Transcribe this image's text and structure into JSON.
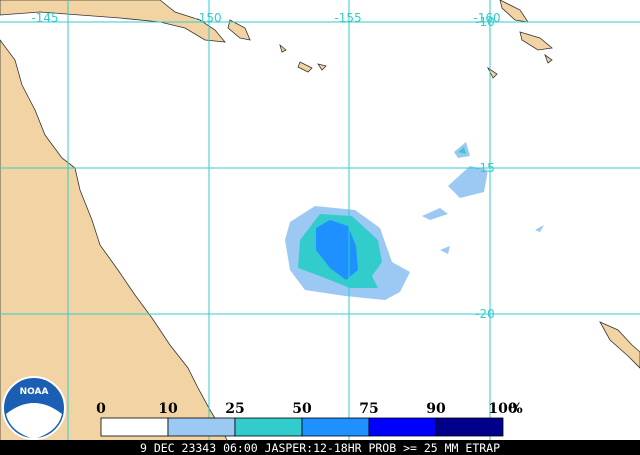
{
  "map": {
    "lon_labels": [
      "-145",
      "-150",
      "-155",
      "-160"
    ],
    "lat_labels": [
      "-10",
      "-15",
      "-20"
    ],
    "legend": {
      "labels": [
        "0",
        "10",
        "25",
        "50",
        "75",
        "90",
        "100"
      ],
      "unit": "%",
      "colors": [
        "#ffffff",
        "#9cc8f4",
        "#33cccc",
        "#1e90ff",
        "#0000ff",
        "#00008b"
      ]
    },
    "logo": "NOAA",
    "footer": "9 DEC 23343 06:00 JASPER:12-18HR PROB >= 25 MM ETRAP"
  }
}
